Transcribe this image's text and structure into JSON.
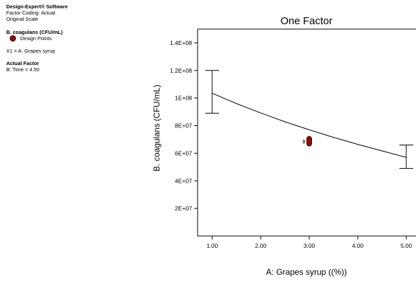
{
  "sidebar": {
    "software": "Design-Expert® Software",
    "coding": "Factor Coding: Actual",
    "scale": "Original Scale",
    "response_title": "B. coagulans (CFU/mL)",
    "legend_label": "Design Points",
    "x1_text": "X1 = A: Grapes syrup",
    "actual_factor_title": "Actual Factor",
    "actual_factor_value": "B: Time = 4.50"
  },
  "colors": {
    "design_point": "#8b0d0d",
    "axis": "#000000",
    "curve": "#000000"
  },
  "chart_data": {
    "type": "line",
    "title": "One Factor",
    "xlabel": "A: Grapes syrup ((%))",
    "ylabel": "B. coagulans (CFU/mL)",
    "xlim": [
      0.7,
      5.2
    ],
    "ylim": [
      0,
      150000000
    ],
    "x_ticks": [
      1.0,
      2.0,
      3.0,
      4.0,
      5.0
    ],
    "x_tick_labels": [
      "1.00",
      "2.00",
      "3.00",
      "4.00",
      "5.00"
    ],
    "y_ticks": [
      20000000,
      40000000,
      60000000,
      80000000,
      100000000,
      120000000,
      140000000
    ],
    "y_tick_labels": [
      "2E+07",
      "4E+07",
      "6E+07",
      "8E+07",
      "1E+08",
      "1.2E+08",
      "1.4E+08"
    ],
    "series": [
      {
        "type": "curve",
        "x": [
          1.0,
          1.5,
          2.0,
          2.5,
          3.0,
          3.5,
          4.0,
          4.5,
          5.0
        ],
        "y": [
          103500000,
          96000000,
          89200000,
          82800000,
          77000000,
          71500000,
          66400000,
          61700000,
          57000000
        ]
      }
    ],
    "error_bars": [
      {
        "x": 1.0,
        "low": 89000000,
        "high": 120000000
      },
      {
        "x": 5.0,
        "low": 49000000,
        "high": 66000000
      }
    ],
    "design_points": {
      "x": 3.0,
      "y": 68700000,
      "count_label": "3"
    }
  }
}
